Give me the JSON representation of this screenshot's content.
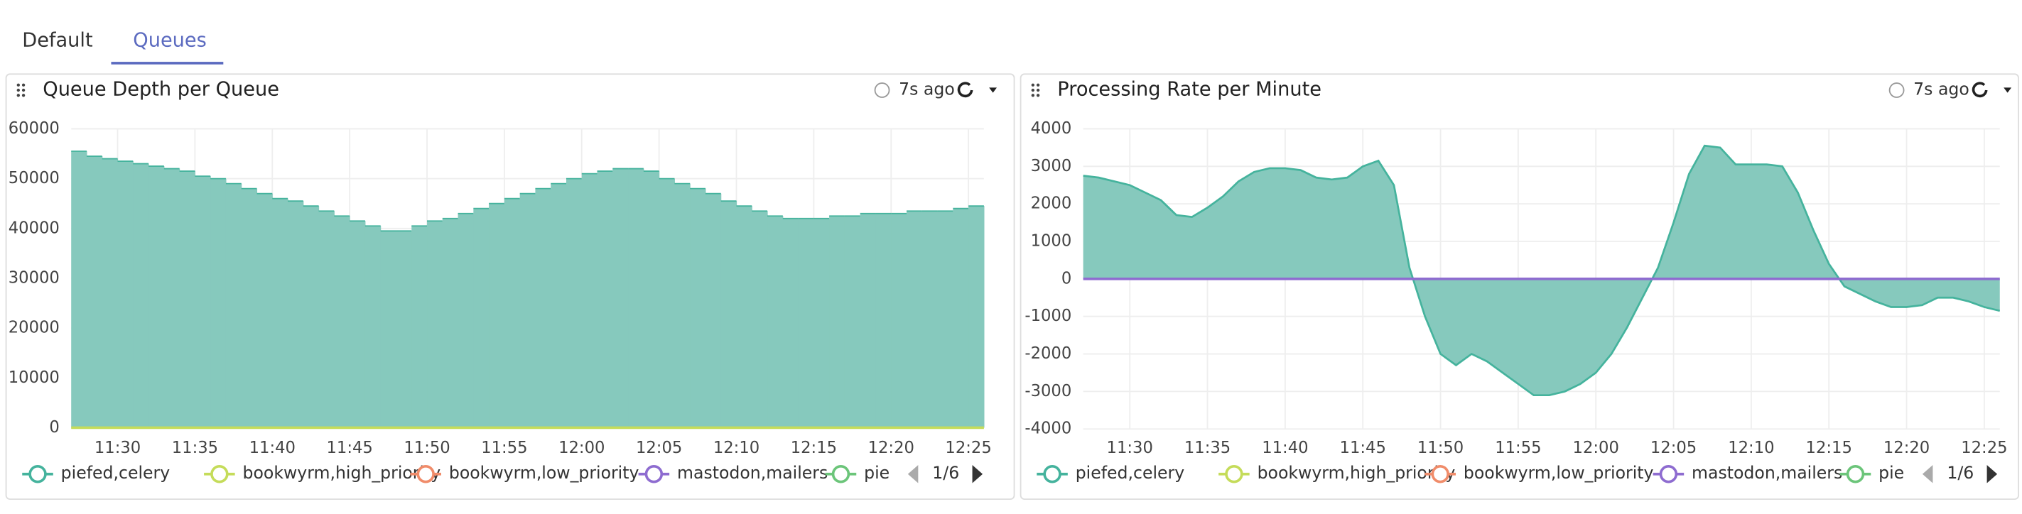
{
  "tabs": [
    "Default",
    "Queues"
  ],
  "chart_data": [
    {
      "type": "step-area",
      "title": "Queue Depth per Queue",
      "status": "7s ago",
      "pagination": "1/6",
      "x": [
        "11:27",
        "11:28",
        "11:29",
        "11:30",
        "11:31",
        "11:32",
        "11:33",
        "11:34",
        "11:35",
        "11:36",
        "11:37",
        "11:38",
        "11:39",
        "11:40",
        "11:41",
        "11:42",
        "11:43",
        "11:44",
        "11:45",
        "11:46",
        "11:47",
        "11:48",
        "11:49",
        "11:50",
        "11:51",
        "11:52",
        "11:53",
        "11:54",
        "11:55",
        "11:56",
        "11:57",
        "11:58",
        "11:59",
        "12:00",
        "12:01",
        "12:02",
        "12:03",
        "12:04",
        "12:05",
        "12:06",
        "12:07",
        "12:08",
        "12:09",
        "12:10",
        "12:11",
        "12:12",
        "12:13",
        "12:14",
        "12:15",
        "12:16",
        "12:17",
        "12:18",
        "12:19",
        "12:20",
        "12:21",
        "12:22",
        "12:23",
        "12:24",
        "12:25",
        "12:26"
      ],
      "xlim": [
        "11:27",
        "12:26"
      ],
      "xticks": [
        "11:30",
        "11:35",
        "11:40",
        "11:45",
        "11:50",
        "11:55",
        "12:00",
        "12:05",
        "12:10",
        "12:15",
        "12:20",
        "12:25"
      ],
      "ylim": [
        0,
        60000
      ],
      "yticks": [
        0,
        10000,
        20000,
        30000,
        40000,
        50000,
        60000
      ],
      "grid": true,
      "series": [
        {
          "name": "piefed,celery",
          "color": "#45b39d",
          "values": [
            55500,
            54500,
            54000,
            53500,
            53000,
            52500,
            52000,
            51500,
            50500,
            50000,
            49000,
            48000,
            47000,
            46000,
            45500,
            44500,
            43500,
            42500,
            41500,
            40500,
            39500,
            39500,
            40500,
            41500,
            42000,
            43000,
            44000,
            45000,
            46000,
            47000,
            48000,
            49000,
            50000,
            51000,
            51500,
            52000,
            52000,
            51500,
            50000,
            49000,
            48000,
            47000,
            45500,
            44500,
            43500,
            42500,
            42000,
            42000,
            42000,
            42500,
            42500,
            43000,
            43000,
            43000,
            43500,
            43500,
            43500,
            44000,
            44500,
            44500
          ]
        },
        {
          "name": "bookwyrm,high_priority",
          "color": "#c5dc5a",
          "values": [
            0,
            0,
            0,
            0,
            0,
            0,
            0,
            0,
            0,
            0,
            0,
            0,
            0,
            0,
            0,
            0,
            0,
            0,
            0,
            0,
            0,
            0,
            0,
            0,
            0,
            0,
            0,
            0,
            0,
            0,
            0,
            0,
            0,
            0,
            0,
            0,
            0,
            0,
            0,
            0,
            0,
            0,
            0,
            0,
            0,
            0,
            0,
            0,
            0,
            0,
            0,
            0,
            0,
            0,
            0,
            0,
            0,
            0,
            0,
            0
          ]
        },
        {
          "name": "bookwyrm,low_priority",
          "color": "#f08c6a"
        },
        {
          "name": "mastodon,mailers",
          "color": "#8e6cd0"
        },
        {
          "name": "pie",
          "color": "#6cc57a"
        }
      ]
    },
    {
      "type": "area",
      "title": "Processing Rate per Minute",
      "status": "7s ago",
      "pagination": "1/6",
      "x": [
        "11:27",
        "11:28",
        "11:29",
        "11:30",
        "11:31",
        "11:32",
        "11:33",
        "11:34",
        "11:35",
        "11:36",
        "11:37",
        "11:38",
        "11:39",
        "11:40",
        "11:41",
        "11:42",
        "11:43",
        "11:44",
        "11:45",
        "11:46",
        "11:47",
        "11:48",
        "11:49",
        "11:50",
        "11:51",
        "11:52",
        "11:53",
        "11:54",
        "11:55",
        "11:56",
        "11:57",
        "11:58",
        "11:59",
        "12:00",
        "12:01",
        "12:02",
        "12:03",
        "12:04",
        "12:05",
        "12:06",
        "12:07",
        "12:08",
        "12:09",
        "12:10",
        "12:11",
        "12:12",
        "12:13",
        "12:14",
        "12:15",
        "12:16",
        "12:17",
        "12:18",
        "12:19",
        "12:20",
        "12:21",
        "12:22",
        "12:23",
        "12:24",
        "12:25",
        "12:26"
      ],
      "xlim": [
        "11:27",
        "12:26"
      ],
      "xticks": [
        "11:30",
        "11:35",
        "11:40",
        "11:45",
        "11:50",
        "11:55",
        "12:00",
        "12:05",
        "12:10",
        "12:15",
        "12:20",
        "12:25"
      ],
      "ylim": [
        -4000,
        4000
      ],
      "yticks": [
        -4000,
        -3000,
        -2000,
        -1000,
        0,
        1000,
        2000,
        3000,
        4000
      ],
      "grid": true,
      "series": [
        {
          "name": "piefed,celery",
          "color": "#45b39d",
          "values": [
            2750,
            2700,
            2600,
            2500,
            2300,
            2100,
            1700,
            1650,
            1900,
            2200,
            2600,
            2850,
            2950,
            2950,
            2900,
            2700,
            2650,
            2700,
            3000,
            3150,
            2500,
            300,
            -1000,
            -2000,
            -2300,
            -2000,
            -2200,
            -2500,
            -2800,
            -3100,
            -3100,
            -3000,
            -2800,
            -2500,
            -2000,
            -1300,
            -500,
            300,
            1500,
            2800,
            3550,
            3500,
            3050,
            3050,
            3050,
            3000,
            2300,
            1300,
            400,
            -200,
            -400,
            -600,
            -750,
            -750,
            -700,
            -500,
            -500,
            -600,
            -750,
            -850
          ]
        },
        {
          "name": "bookwyrm,high_priority",
          "color": "#c5dc5a"
        },
        {
          "name": "bookwyrm,low_priority",
          "color": "#f08c6a"
        },
        {
          "name": "mastodon,mailers",
          "color": "#8e6cd0",
          "values": [
            0,
            0,
            0,
            0,
            0,
            0,
            0,
            0,
            0,
            0,
            0,
            0,
            0,
            0,
            0,
            0,
            0,
            0,
            0,
            0,
            0,
            0,
            0,
            0,
            0,
            0,
            0,
            0,
            0,
            0,
            0,
            0,
            0,
            0,
            0,
            0,
            0,
            0,
            0,
            0,
            0,
            0,
            0,
            0,
            0,
            0,
            0,
            0,
            0,
            0,
            0,
            0,
            0,
            0,
            0,
            0,
            0,
            0,
            0,
            0
          ]
        },
        {
          "name": "pie",
          "color": "#6cc57a"
        }
      ]
    }
  ]
}
